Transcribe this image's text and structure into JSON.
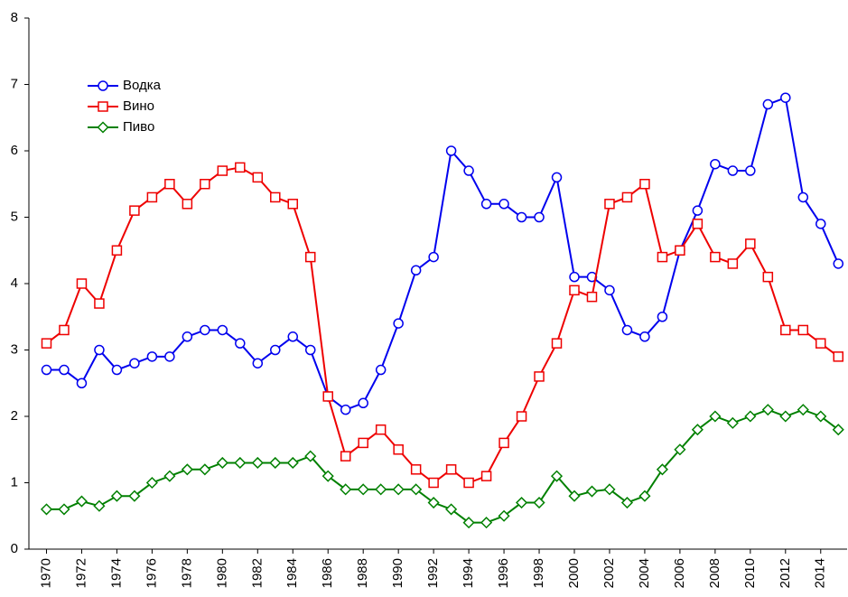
{
  "chart_data": {
    "type": "line",
    "x": [
      1970,
      1971,
      1972,
      1973,
      1974,
      1975,
      1976,
      1977,
      1978,
      1979,
      1980,
      1981,
      1982,
      1983,
      1984,
      1985,
      1986,
      1987,
      1988,
      1989,
      1990,
      1991,
      1992,
      1993,
      1994,
      1995,
      1996,
      1997,
      1998,
      1999,
      2000,
      2001,
      2002,
      2003,
      2004,
      2005,
      2006,
      2007,
      2008,
      2009,
      2010,
      2011,
      2012,
      2013,
      2014,
      2015
    ],
    "series": [
      {
        "name": "Водка",
        "color": "#0000ee",
        "marker": "circle",
        "values": [
          2.7,
          2.7,
          2.5,
          3.0,
          2.7,
          2.8,
          2.9,
          2.9,
          3.2,
          3.3,
          3.3,
          3.1,
          2.8,
          3.0,
          3.2,
          3.0,
          2.3,
          2.1,
          2.2,
          2.7,
          3.4,
          4.2,
          4.4,
          6.0,
          5.7,
          5.2,
          5.2,
          5.0,
          5.0,
          5.6,
          4.1,
          4.1,
          3.9,
          3.3,
          3.2,
          3.5,
          4.5,
          5.1,
          5.8,
          5.7,
          5.7,
          6.7,
          6.8,
          5.3,
          4.9,
          4.3
        ]
      },
      {
        "name": "Вино",
        "color": "#ee0000",
        "marker": "square",
        "values": [
          3.1,
          3.3,
          4.0,
          3.7,
          4.5,
          5.1,
          5.3,
          5.5,
          5.2,
          5.5,
          5.7,
          5.75,
          5.6,
          5.3,
          5.2,
          4.4,
          2.3,
          1.4,
          1.6,
          1.8,
          1.5,
          1.2,
          1.0,
          1.2,
          1.0,
          1.1,
          1.6,
          2.0,
          2.6,
          3.1,
          3.9,
          3.8,
          5.2,
          5.3,
          5.5,
          4.4,
          4.5,
          4.9,
          4.4,
          4.3,
          4.6,
          4.1,
          3.3,
          3.3,
          3.1,
          2.9
        ]
      },
      {
        "name": "Пиво",
        "color": "#008000",
        "marker": "diamond",
        "values": [
          0.6,
          0.6,
          0.72,
          0.65,
          0.8,
          0.8,
          1.0,
          1.1,
          1.2,
          1.2,
          1.3,
          1.3,
          1.3,
          1.3,
          1.3,
          1.4,
          1.1,
          0.9,
          0.9,
          0.9,
          0.9,
          0.9,
          0.7,
          0.6,
          0.4,
          0.4,
          0.5,
          0.7,
          0.7,
          1.1,
          0.8,
          0.87,
          0.9,
          0.7,
          0.8,
          1.2,
          1.5,
          1.8,
          2.0,
          1.9,
          2.0,
          2.1,
          2.0,
          2.1,
          2.0,
          1.8
        ]
      }
    ],
    "xlim": [
      1969,
      2015.5
    ],
    "ylim": [
      0,
      8
    ],
    "xticks": [
      1970,
      1972,
      1974,
      1976,
      1978,
      1980,
      1982,
      1984,
      1986,
      1988,
      1990,
      1992,
      1994,
      1996,
      1998,
      2000,
      2002,
      2004,
      2006,
      2008,
      2010,
      2012,
      2014
    ],
    "yticks": [
      0,
      1,
      2,
      3,
      4,
      5,
      6,
      7,
      8
    ],
    "legend": "upper left",
    "grid": false
  }
}
